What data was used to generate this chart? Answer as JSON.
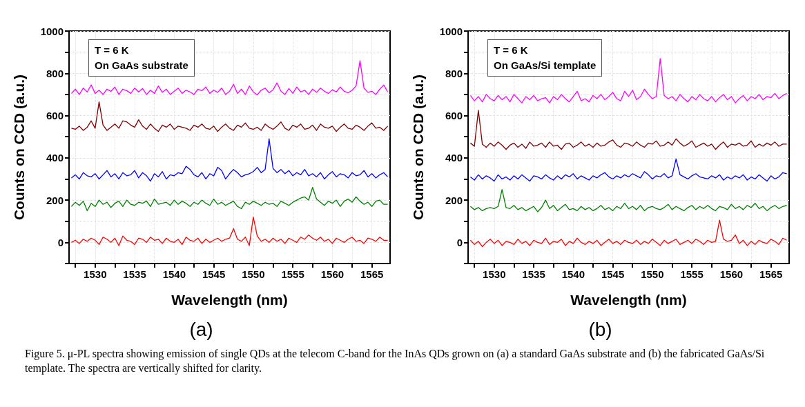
{
  "chart_data": [
    {
      "type": "line",
      "xlabel": "Wavelength (nm)",
      "ylabel": "Counts on CCD (a.u.)",
      "grid": true,
      "annotations": [
        "T = 6 K",
        "On GaAs substrate",
        "(a)",
        "Figure 5. μ-PL spectra showing emission of single QDs at the telecom C-band for the InAs QDs grown on (a) a standard GaAs substrate and (b) the fabricated GaAs/Si template. The spectra are vertically shifted for clarity."
      ],
      "xlim": [
        1526.7,
        1567.3
      ],
      "ylim": [
        -100,
        1000
      ],
      "xticks": [
        {
          "value": 1527.5,
          "label": null
        },
        1530,
        {
          "value": 1532.5,
          "label": null
        },
        1535,
        {
          "value": 1537.5,
          "label": null
        },
        1540,
        {
          "value": 1542.5,
          "label": null
        },
        1545,
        {
          "value": 1547.5,
          "label": null
        },
        1550,
        {
          "value": 1552.5,
          "label": null
        },
        1555,
        {
          "value": 1557.5,
          "label": null
        },
        1560,
        {
          "value": 1562.5,
          "label": null
        },
        1565
      ],
      "yticks": [
        {
          "value": -100,
          "label": null
        },
        0,
        {
          "value": 100,
          "label": null
        },
        200,
        {
          "value": 300,
          "label": null
        },
        400,
        {
          "value": 500,
          "label": null
        },
        600,
        {
          "value": 700,
          "label": null
        },
        800,
        {
          "value": 900,
          "label": null
        },
        1000
      ],
      "x": [
        1527,
        1527.5,
        1528,
        1528.5,
        1529,
        1529.5,
        1530,
        1530.5,
        1531,
        1531.5,
        1532,
        1532.5,
        1533,
        1533.5,
        1534,
        1534.5,
        1535,
        1535.5,
        1536,
        1536.5,
        1537,
        1537.5,
        1538,
        1538.5,
        1539,
        1539.5,
        1540,
        1540.5,
        1541,
        1541.5,
        1542,
        1542.5,
        1543,
        1543.5,
        1544,
        1544.5,
        1545,
        1545.5,
        1546,
        1546.5,
        1547,
        1547.5,
        1548,
        1548.5,
        1549,
        1549.5,
        1550,
        1550.5,
        1551,
        1551.5,
        1552,
        1552.5,
        1553,
        1553.5,
        1554,
        1554.5,
        1555,
        1555.5,
        1556,
        1556.5,
        1557,
        1557.5,
        1558,
        1558.5,
        1559,
        1559.5,
        1560,
        1560.5,
        1561,
        1561.5,
        1562,
        1562.5,
        1563,
        1563.5,
        1564,
        1564.5,
        1565,
        1565.5,
        1566,
        1566.5,
        1567
      ],
      "series": [
        {
          "color": "#ff00ff",
          "values": [
            705,
            725,
            700,
            730,
            712,
            745,
            705,
            720,
            700,
            725,
            715,
            735,
            700,
            725,
            718,
            705,
            730,
            712,
            728,
            700,
            720,
            705,
            740,
            710,
            725,
            700,
            715,
            730,
            705,
            720,
            712,
            700,
            725,
            718,
            735,
            705,
            720,
            710,
            730,
            700,
            715,
            748,
            705,
            725,
            700,
            740,
            712,
            698,
            720,
            730,
            708,
            722,
            755,
            715,
            700,
            728,
            705,
            735,
            712,
            720,
            700,
            725,
            710,
            730,
            715,
            705,
            722,
            712,
            735,
            715,
            708,
            720,
            740,
            860,
            730,
            710,
            715,
            700,
            725,
            745,
            712
          ]
        },
        {
          "color": "#800000",
          "values": [
            540,
            535,
            550,
            530,
            545,
            575,
            540,
            665,
            555,
            530,
            545,
            560,
            540,
            575,
            570,
            555,
            545,
            580,
            550,
            535,
            560,
            540,
            525,
            555,
            545,
            560,
            535,
            550,
            545,
            540,
            530,
            555,
            545,
            560,
            540,
            535,
            550,
            525,
            545,
            560,
            540,
            530,
            555,
            545,
            565,
            540,
            535,
            545,
            530,
            560,
            545,
            535,
            550,
            570,
            540,
            530,
            555,
            545,
            560,
            535,
            540,
            555,
            530,
            560,
            545,
            540,
            550,
            525,
            545,
            560,
            540,
            535,
            555,
            545,
            530,
            550,
            565,
            540,
            545,
            530,
            550
          ]
        },
        {
          "color": "#0000ff",
          "values": [
            305,
            320,
            300,
            330,
            315,
            310,
            325,
            300,
            320,
            340,
            310,
            325,
            300,
            330,
            315,
            320,
            340,
            305,
            330,
            315,
            290,
            325,
            310,
            335,
            300,
            320,
            315,
            330,
            325,
            360,
            345,
            320,
            310,
            330,
            300,
            325,
            315,
            355,
            340,
            300,
            325,
            345,
            330,
            310,
            320,
            325,
            335,
            355,
            330,
            345,
            490,
            350,
            330,
            345,
            325,
            340,
            315,
            330,
            320,
            345,
            315,
            325,
            310,
            330,
            300,
            320,
            335,
            310,
            325,
            320,
            305,
            330,
            315,
            320,
            340,
            310,
            325,
            305,
            320,
            330,
            310
          ]
        },
        {
          "color": "#008000",
          "values": [
            170,
            190,
            175,
            195,
            150,
            185,
            170,
            200,
            180,
            190,
            165,
            185,
            195,
            170,
            200,
            180,
            175,
            190,
            185,
            195,
            170,
            205,
            180,
            185,
            190,
            175,
            200,
            180,
            195,
            185,
            170,
            190,
            180,
            200,
            185,
            175,
            205,
            180,
            190,
            175,
            185,
            195,
            170,
            160,
            190,
            180,
            195,
            185,
            175,
            190,
            180,
            185,
            170,
            195,
            185,
            175,
            190,
            200,
            210,
            215,
            200,
            260,
            205,
            190,
            175,
            195,
            185,
            200,
            170,
            195,
            205,
            190,
            215,
            195,
            180,
            190,
            170,
            195,
            200,
            180,
            180
          ]
        },
        {
          "color": "#ff0000",
          "values": [
            0,
            10,
            -5,
            15,
            5,
            20,
            10,
            -10,
            25,
            15,
            0,
            20,
            -15,
            30,
            10,
            5,
            -10,
            20,
            15,
            0,
            25,
            10,
            15,
            -5,
            20,
            5,
            0,
            15,
            -10,
            25,
            10,
            5,
            20,
            -5,
            15,
            0,
            10,
            20,
            5,
            15,
            20,
            65,
            15,
            5,
            25,
            -15,
            120,
            30,
            5,
            15,
            0,
            20,
            5,
            15,
            -5,
            20,
            10,
            0,
            25,
            15,
            35,
            20,
            10,
            25,
            5,
            15,
            -5,
            20,
            10,
            0,
            15,
            25,
            5,
            10,
            -5,
            20,
            15,
            5,
            25,
            10,
            10
          ]
        }
      ]
    },
    {
      "type": "line",
      "xlabel": "Wavelength (nm)",
      "ylabel": "Counts on CCD (a.u.)",
      "grid": true,
      "annotations": [
        "T = 6 K",
        "On GaAs/Si template",
        "(b)"
      ],
      "xlim": [
        1526.7,
        1567.3
      ],
      "ylim": [
        -100,
        1000
      ],
      "xticks": [
        {
          "value": 1527.5,
          "label": null
        },
        1530,
        {
          "value": 1532.5,
          "label": null
        },
        1535,
        {
          "value": 1537.5,
          "label": null
        },
        1540,
        {
          "value": 1542.5,
          "label": null
        },
        1545,
        {
          "value": 1547.5,
          "label": null
        },
        1550,
        {
          "value": 1552.5,
          "label": null
        },
        1555,
        {
          "value": 1557.5,
          "label": null
        },
        1560,
        {
          "value": 1562.5,
          "label": null
        },
        1565
      ],
      "yticks": [
        {
          "value": -100,
          "label": null
        },
        0,
        {
          "value": 100,
          "label": null
        },
        200,
        {
          "value": 300,
          "label": null
        },
        400,
        {
          "value": 500,
          "label": null
        },
        600,
        {
          "value": 700,
          "label": null
        },
        800,
        {
          "value": 900,
          "label": null
        },
        1000
      ],
      "x": [
        1527,
        1527.5,
        1528,
        1528.5,
        1529,
        1529.5,
        1530,
        1530.5,
        1531,
        1531.5,
        1532,
        1532.5,
        1533,
        1533.5,
        1534,
        1534.5,
        1535,
        1535.5,
        1536,
        1536.5,
        1537,
        1537.5,
        1538,
        1538.5,
        1539,
        1539.5,
        1540,
        1540.5,
        1541,
        1541.5,
        1542,
        1542.5,
        1543,
        1543.5,
        1544,
        1544.5,
        1545,
        1545.5,
        1546,
        1546.5,
        1547,
        1547.5,
        1548,
        1548.5,
        1549,
        1549.5,
        1550,
        1550.5,
        1551,
        1551.5,
        1552,
        1552.5,
        1553,
        1553.5,
        1554,
        1554.5,
        1555,
        1555.5,
        1556,
        1556.5,
        1557,
        1557.5,
        1558,
        1558.5,
        1559,
        1559.5,
        1560,
        1560.5,
        1561,
        1561.5,
        1562,
        1562.5,
        1563,
        1563.5,
        1564,
        1564.5,
        1565,
        1565.5,
        1566,
        1566.5,
        1567
      ],
      "series": [
        {
          "color": "#ff00ff",
          "values": [
            695,
            670,
            690,
            665,
            700,
            680,
            670,
            695,
            675,
            690,
            665,
            700,
            680,
            660,
            690,
            675,
            695,
            670,
            680,
            685,
            660,
            690,
            675,
            700,
            680,
            665,
            690,
            715,
            670,
            680,
            665,
            695,
            680,
            700,
            675,
            690,
            710,
            680,
            670,
            715,
            690,
            720,
            675,
            690,
            725,
            700,
            680,
            690,
            870,
            695,
            680,
            690,
            670,
            700,
            680,
            665,
            690,
            675,
            700,
            680,
            670,
            690,
            665,
            685,
            700,
            675,
            690,
            660,
            680,
            695,
            670,
            690,
            680,
            700,
            675,
            690,
            685,
            705,
            680,
            695,
            705
          ]
        },
        {
          "color": "#800000",
          "values": [
            470,
            455,
            625,
            465,
            450,
            470,
            455,
            475,
            460,
            440,
            460,
            470,
            450,
            465,
            445,
            475,
            455,
            460,
            470,
            450,
            475,
            455,
            460,
            440,
            465,
            470,
            450,
            460,
            475,
            455,
            465,
            450,
            470,
            455,
            460,
            475,
            485,
            460,
            450,
            470,
            465,
            455,
            475,
            460,
            450,
            470,
            465,
            480,
            455,
            460,
            475,
            460,
            490,
            470,
            455,
            465,
            480,
            450,
            460,
            470,
            455,
            465,
            440,
            460,
            475,
            450,
            465,
            460,
            470,
            455,
            460,
            480,
            450,
            465,
            455,
            470,
            460,
            475,
            455,
            465,
            465
          ]
        },
        {
          "color": "#0000ff",
          "values": [
            310,
            295,
            320,
            300,
            315,
            305,
            290,
            320,
            300,
            310,
            295,
            315,
            300,
            320,
            305,
            290,
            315,
            310,
            300,
            320,
            305,
            295,
            315,
            300,
            320,
            310,
            325,
            300,
            315,
            305,
            295,
            315,
            305,
            320,
            330,
            310,
            300,
            315,
            305,
            320,
            310,
            325,
            315,
            305,
            335,
            320,
            300,
            315,
            310,
            325,
            305,
            315,
            395,
            320,
            310,
            300,
            315,
            325,
            310,
            305,
            300,
            315,
            305,
            320,
            295,
            310,
            300,
            315,
            305,
            320,
            295,
            310,
            300,
            320,
            305,
            290,
            315,
            300,
            310,
            330,
            325
          ]
        },
        {
          "color": "#008000",
          "values": [
            170,
            155,
            165,
            150,
            160,
            165,
            160,
            170,
            250,
            165,
            160,
            175,
            155,
            165,
            150,
            160,
            170,
            145,
            165,
            200,
            160,
            175,
            150,
            165,
            180,
            155,
            160,
            150,
            170,
            155,
            165,
            150,
            160,
            175,
            155,
            165,
            150,
            170,
            160,
            185,
            160,
            170,
            155,
            175,
            150,
            165,
            170,
            160,
            155,
            165,
            180,
            155,
            170,
            160,
            150,
            165,
            175,
            155,
            170,
            160,
            175,
            160,
            150,
            170,
            165,
            155,
            180,
            160,
            170,
            155,
            175,
            165,
            185,
            160,
            170,
            150,
            165,
            175,
            160,
            170,
            175
          ]
        },
        {
          "color": "#ff0000",
          "values": [
            10,
            -10,
            5,
            -20,
            0,
            15,
            -5,
            10,
            -15,
            5,
            0,
            -10,
            15,
            -5,
            5,
            -15,
            10,
            0,
            -5,
            20,
            -10,
            5,
            0,
            15,
            -15,
            5,
            -5,
            20,
            0,
            -10,
            5,
            -5,
            10,
            -15,
            0,
            15,
            -5,
            5,
            -10,
            10,
            0,
            -5,
            10,
            -10,
            5,
            -5,
            15,
            0,
            -15,
            10,
            -5,
            5,
            15,
            -10,
            0,
            10,
            -5,
            15,
            5,
            -10,
            10,
            0,
            5,
            105,
            15,
            5,
            10,
            35,
            -5,
            10,
            -15,
            5,
            -10,
            10,
            0,
            -5,
            15,
            5,
            -10,
            20,
            10
          ]
        }
      ]
    }
  ]
}
